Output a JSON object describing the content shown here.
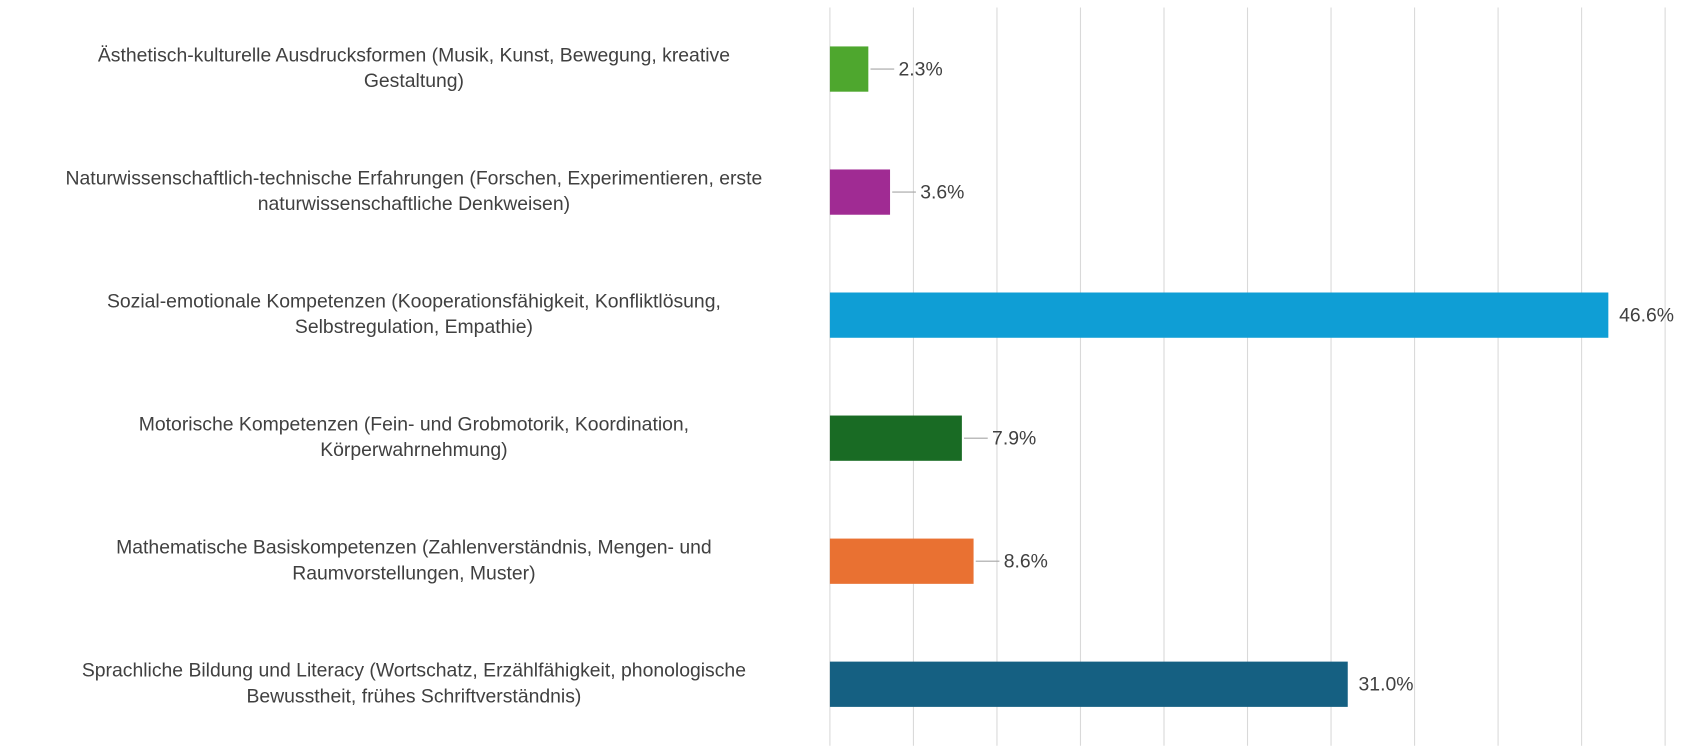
{
  "chart_data": {
    "type": "hbar",
    "categories": [
      [
        "Ästhetisch-kulturelle Ausdrucksformen (Musik, Kunst, Bewegung, kreative",
        "Gestaltung)"
      ],
      [
        "Naturwissenschaftlich-technische Erfahrungen (Forschen, Experimentieren, erste",
        "naturwissenschaftliche Denkweisen)"
      ],
      [
        "Sozial-emotionale Kompetenzen (Kooperationsfähigkeit, Konfliktlösung,",
        "Selbstregulation, Empathie)"
      ],
      [
        "Motorische Kompetenzen (Fein- und Grobmotorik, Koordination,",
        "Körperwahrnehmung)"
      ],
      [
        "Mathematische Basiskompetenzen (Zahlenverständnis, Mengen- und",
        "Raumvorstellungen, Muster)"
      ],
      [
        "Sprachliche Bildung und Literacy (Wortschatz, Erzählfähigkeit, phonologische",
        "Bewusstheit, frühes Schriftverständnis)"
      ]
    ],
    "values": [
      2.3,
      3.6,
      46.6,
      7.9,
      8.6,
      31.0
    ],
    "value_labels": [
      "2.3%",
      "3.6%",
      "46.6%",
      "7.9%",
      "8.6%",
      "31.0%"
    ],
    "colors": [
      "#4ea72e",
      "#a02b93",
      "#0f9ed5",
      "#196b24",
      "#e97132",
      "#156082"
    ],
    "xlim": [
      0,
      50
    ],
    "xticks": [
      0,
      5,
      10,
      15,
      20,
      25,
      30,
      35,
      40,
      45,
      50
    ],
    "grid": true
  }
}
